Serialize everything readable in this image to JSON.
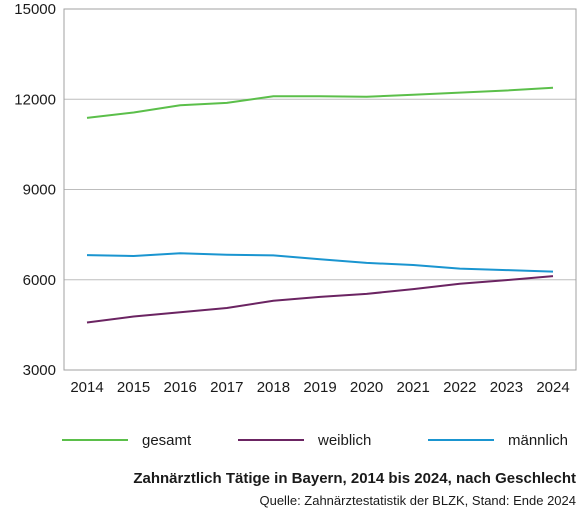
{
  "chart_data": {
    "type": "line",
    "title": "Zahnärztlich Tätige in Bayern, 2014 bis 2024, nach Geschlecht",
    "source": "Quelle: Zahnärztestatistik der BLZK, Stand: Ende 2024",
    "x": [
      "2014",
      "2015",
      "2016",
      "2017",
      "2018",
      "2019",
      "2020",
      "2021",
      "2022",
      "2023",
      "2024"
    ],
    "ylim": [
      3000,
      15000
    ],
    "yticks": [
      "3000",
      "6000",
      "9000",
      "12000",
      "15000"
    ],
    "grid": "horizontal",
    "legend_position": "bottom",
    "series": [
      {
        "name": "gesamt",
        "color": "#5bbf4a",
        "values": [
          11380,
          11560,
          11800,
          11880,
          12100,
          12100,
          12080,
          12150,
          12220,
          12290,
          12380
        ]
      },
      {
        "name": "weiblich",
        "color": "#6b2462",
        "values": [
          4580,
          4780,
          4920,
          5060,
          5300,
          5430,
          5530,
          5690,
          5870,
          5990,
          6120
        ]
      },
      {
        "name": "männlich",
        "color": "#1a95d0",
        "values": [
          6820,
          6790,
          6880,
          6830,
          6810,
          6680,
          6560,
          6490,
          6370,
          6320,
          6270
        ]
      }
    ]
  }
}
